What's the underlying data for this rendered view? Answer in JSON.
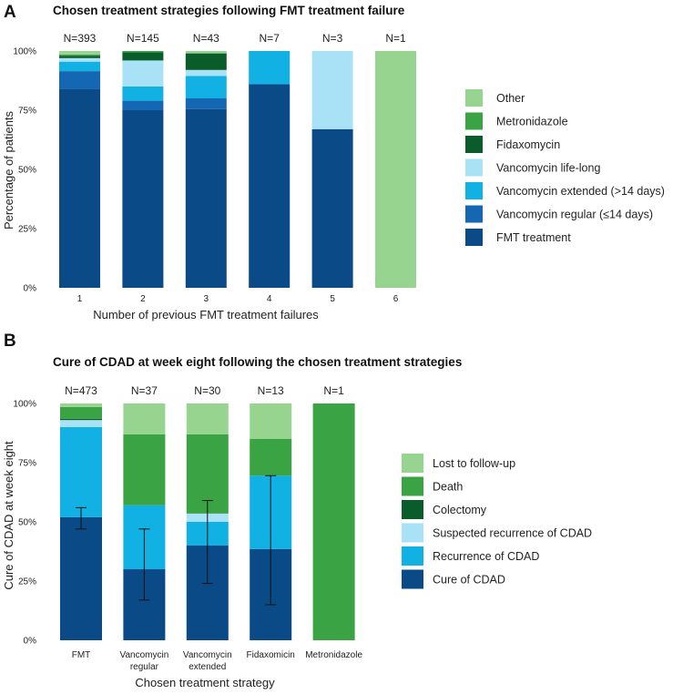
{
  "chart_data": [
    {
      "panel": "A",
      "type": "bar",
      "stacked": true,
      "title": "Chosen treatment strategies following FMT treatment failure",
      "xlabel": "Number of previous FMT treatment failures",
      "ylabel": "Percentage of patients",
      "ylim": [
        0,
        100
      ],
      "yticks": [
        "0%",
        "25%",
        "50%",
        "75%",
        "100%"
      ],
      "legend_position": "right",
      "categories": [
        "1",
        "2",
        "3",
        "4",
        "5",
        "6"
      ],
      "n_labels": [
        "N=393",
        "N=145",
        "N=43",
        "N=7",
        "N=3",
        "N=1"
      ],
      "series": [
        {
          "name": "FMT treatment",
          "color": "#0a4a87",
          "values": [
            84,
            75,
            75.5,
            86,
            67,
            0
          ]
        },
        {
          "name": "Vancomycin regular (≤14 days)",
          "color": "#1467b3",
          "values": [
            7.5,
            4,
            4.5,
            0,
            0,
            0
          ]
        },
        {
          "name": "Vancomycin extended (>14 days)",
          "color": "#11b1e3",
          "values": [
            4,
            6,
            9.5,
            14,
            0,
            0
          ]
        },
        {
          "name": "Vancomycin life-long",
          "color": "#a9e1f7",
          "values": [
            1.5,
            11,
            2.5,
            0,
            33,
            0
          ]
        },
        {
          "name": "Fidaxomycin",
          "color": "#0b5c2b",
          "values": [
            1,
            3.5,
            7,
            0,
            0,
            0
          ]
        },
        {
          "name": "Metronidazole",
          "color": "#3aa444",
          "values": [
            0.5,
            0.5,
            0,
            0,
            0,
            0
          ]
        },
        {
          "name": "Other",
          "color": "#97d490",
          "values": [
            1.5,
            0,
            1,
            0,
            0,
            100
          ]
        }
      ]
    },
    {
      "panel": "B",
      "type": "bar",
      "stacked": true,
      "title": "Cure of CDAD at week eight following the chosen treatment strategies",
      "xlabel": "Chosen treatment strategy",
      "ylabel": "Cure of CDAD at week eight",
      "ylim": [
        0,
        100
      ],
      "yticks": [
        "0%",
        "25%",
        "50%",
        "75%",
        "100%"
      ],
      "legend_position": "right",
      "categories": [
        {
          "line1": "FMT",
          "line2": ""
        },
        {
          "line1": "Vancomycin",
          "line2": "regular"
        },
        {
          "line1": "Vancomycin",
          "line2": "extended"
        },
        {
          "line1": "Fidaxomicin",
          "line2": ""
        },
        {
          "line1": "Metronidazole",
          "line2": ""
        }
      ],
      "n_labels": [
        "N=473",
        "N=37",
        "N=30",
        "N=13",
        "N=1"
      ],
      "series": [
        {
          "name": "Cure of CDAD",
          "color": "#0a4a87",
          "values": [
            52,
            30,
            40,
            38.5,
            0
          ]
        },
        {
          "name": "Recurrence of CDAD",
          "color": "#11b1e3",
          "values": [
            38,
            27,
            10,
            31,
            0
          ]
        },
        {
          "name": "Suspected recurrence of CDAD",
          "color": "#a9e1f7",
          "values": [
            3,
            0,
            3.5,
            0,
            0
          ]
        },
        {
          "name": "Colectomy",
          "color": "#0b5c2b",
          "values": [
            0.5,
            0,
            0,
            0,
            0
          ]
        },
        {
          "name": "Death",
          "color": "#3aa444",
          "values": [
            5,
            30,
            33.5,
            15.5,
            100
          ]
        },
        {
          "name": "Lost to follow-up",
          "color": "#97d490",
          "values": [
            1.5,
            13,
            13,
            15,
            0
          ]
        }
      ],
      "error_bars": [
        {
          "low": 47,
          "high": 56
        },
        {
          "low": 17,
          "high": 47
        },
        {
          "low": 24,
          "high": 59
        },
        {
          "low": 15,
          "high": 69.5
        },
        null
      ]
    }
  ]
}
